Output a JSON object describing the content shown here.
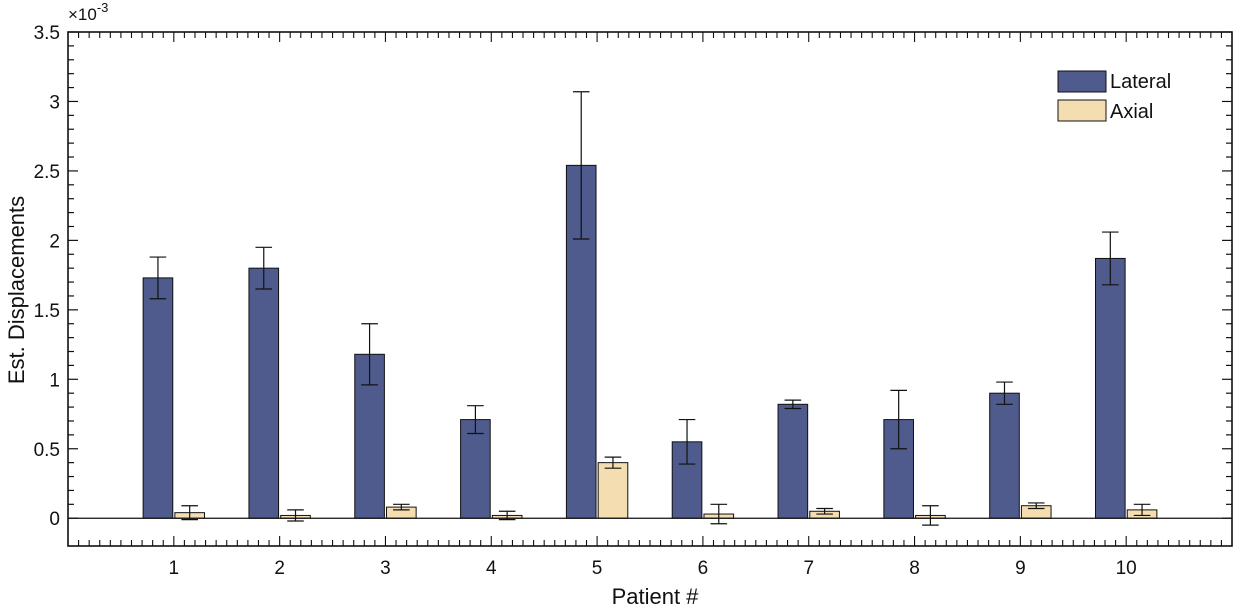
{
  "chart_data": {
    "type": "bar",
    "xlabel": "Patient #",
    "ylabel": "Est. Displacements",
    "y_exponent_label": "×10",
    "y_exponent_power": "-3",
    "categories": [
      "1",
      "2",
      "3",
      "4",
      "5",
      "6",
      "7",
      "8",
      "9",
      "10"
    ],
    "ylim": [
      -0.2,
      3.5
    ],
    "y_ticks": [
      0,
      0.5,
      1,
      1.5,
      2,
      2.5,
      3,
      3.5
    ],
    "y_tick_labels": [
      "0",
      "0.5",
      "1",
      "1.5",
      "2",
      "2.5",
      "3",
      "3.5"
    ],
    "series": [
      {
        "name": "Lateral",
        "color": "#4F5B8C",
        "values": [
          1.73,
          1.8,
          1.18,
          0.71,
          2.54,
          0.55,
          0.82,
          0.71,
          0.9,
          1.87
        ],
        "errors": [
          0.15,
          0.15,
          0.22,
          0.1,
          0.53,
          0.16,
          0.03,
          0.21,
          0.08,
          0.19
        ]
      },
      {
        "name": "Axial",
        "color": "#F4DDB0",
        "values": [
          0.04,
          0.02,
          0.08,
          0.02,
          0.4,
          0.03,
          0.05,
          0.02,
          0.09,
          0.06
        ],
        "errors": [
          0.05,
          0.04,
          0.02,
          0.03,
          0.04,
          0.07,
          0.02,
          0.07,
          0.02,
          0.04
        ]
      }
    ],
    "legend_position": "top-right",
    "grid": false
  }
}
